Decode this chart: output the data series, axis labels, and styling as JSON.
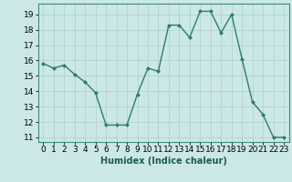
{
  "x": [
    0,
    1,
    2,
    3,
    4,
    5,
    6,
    7,
    8,
    9,
    10,
    11,
    12,
    13,
    14,
    15,
    16,
    17,
    18,
    19,
    20,
    21,
    22,
    23
  ],
  "y": [
    15.8,
    15.5,
    15.7,
    15.1,
    14.6,
    13.9,
    11.8,
    11.8,
    11.8,
    13.8,
    15.5,
    15.3,
    18.3,
    18.3,
    17.5,
    19.2,
    19.2,
    17.8,
    19.0,
    16.1,
    13.3,
    12.5,
    11.0,
    11.0
  ],
  "line_color": "#2e7d6e",
  "marker": "D",
  "marker_size": 2.0,
  "bg_color": "#cce8e6",
  "grid_color": "#aacfcd",
  "xlabel": "Humidex (Indice chaleur)",
  "xlim": [
    -0.5,
    23.5
  ],
  "ylim": [
    10.7,
    19.7
  ],
  "yticks": [
    11,
    12,
    13,
    14,
    15,
    16,
    17,
    18,
    19
  ],
  "xticks": [
    0,
    1,
    2,
    3,
    4,
    5,
    6,
    7,
    8,
    9,
    10,
    11,
    12,
    13,
    14,
    15,
    16,
    17,
    18,
    19,
    20,
    21,
    22,
    23
  ],
  "xlabel_fontsize": 7,
  "tick_fontsize": 6.5,
  "line_width": 1.0,
  "spine_color": "#3d8b82"
}
